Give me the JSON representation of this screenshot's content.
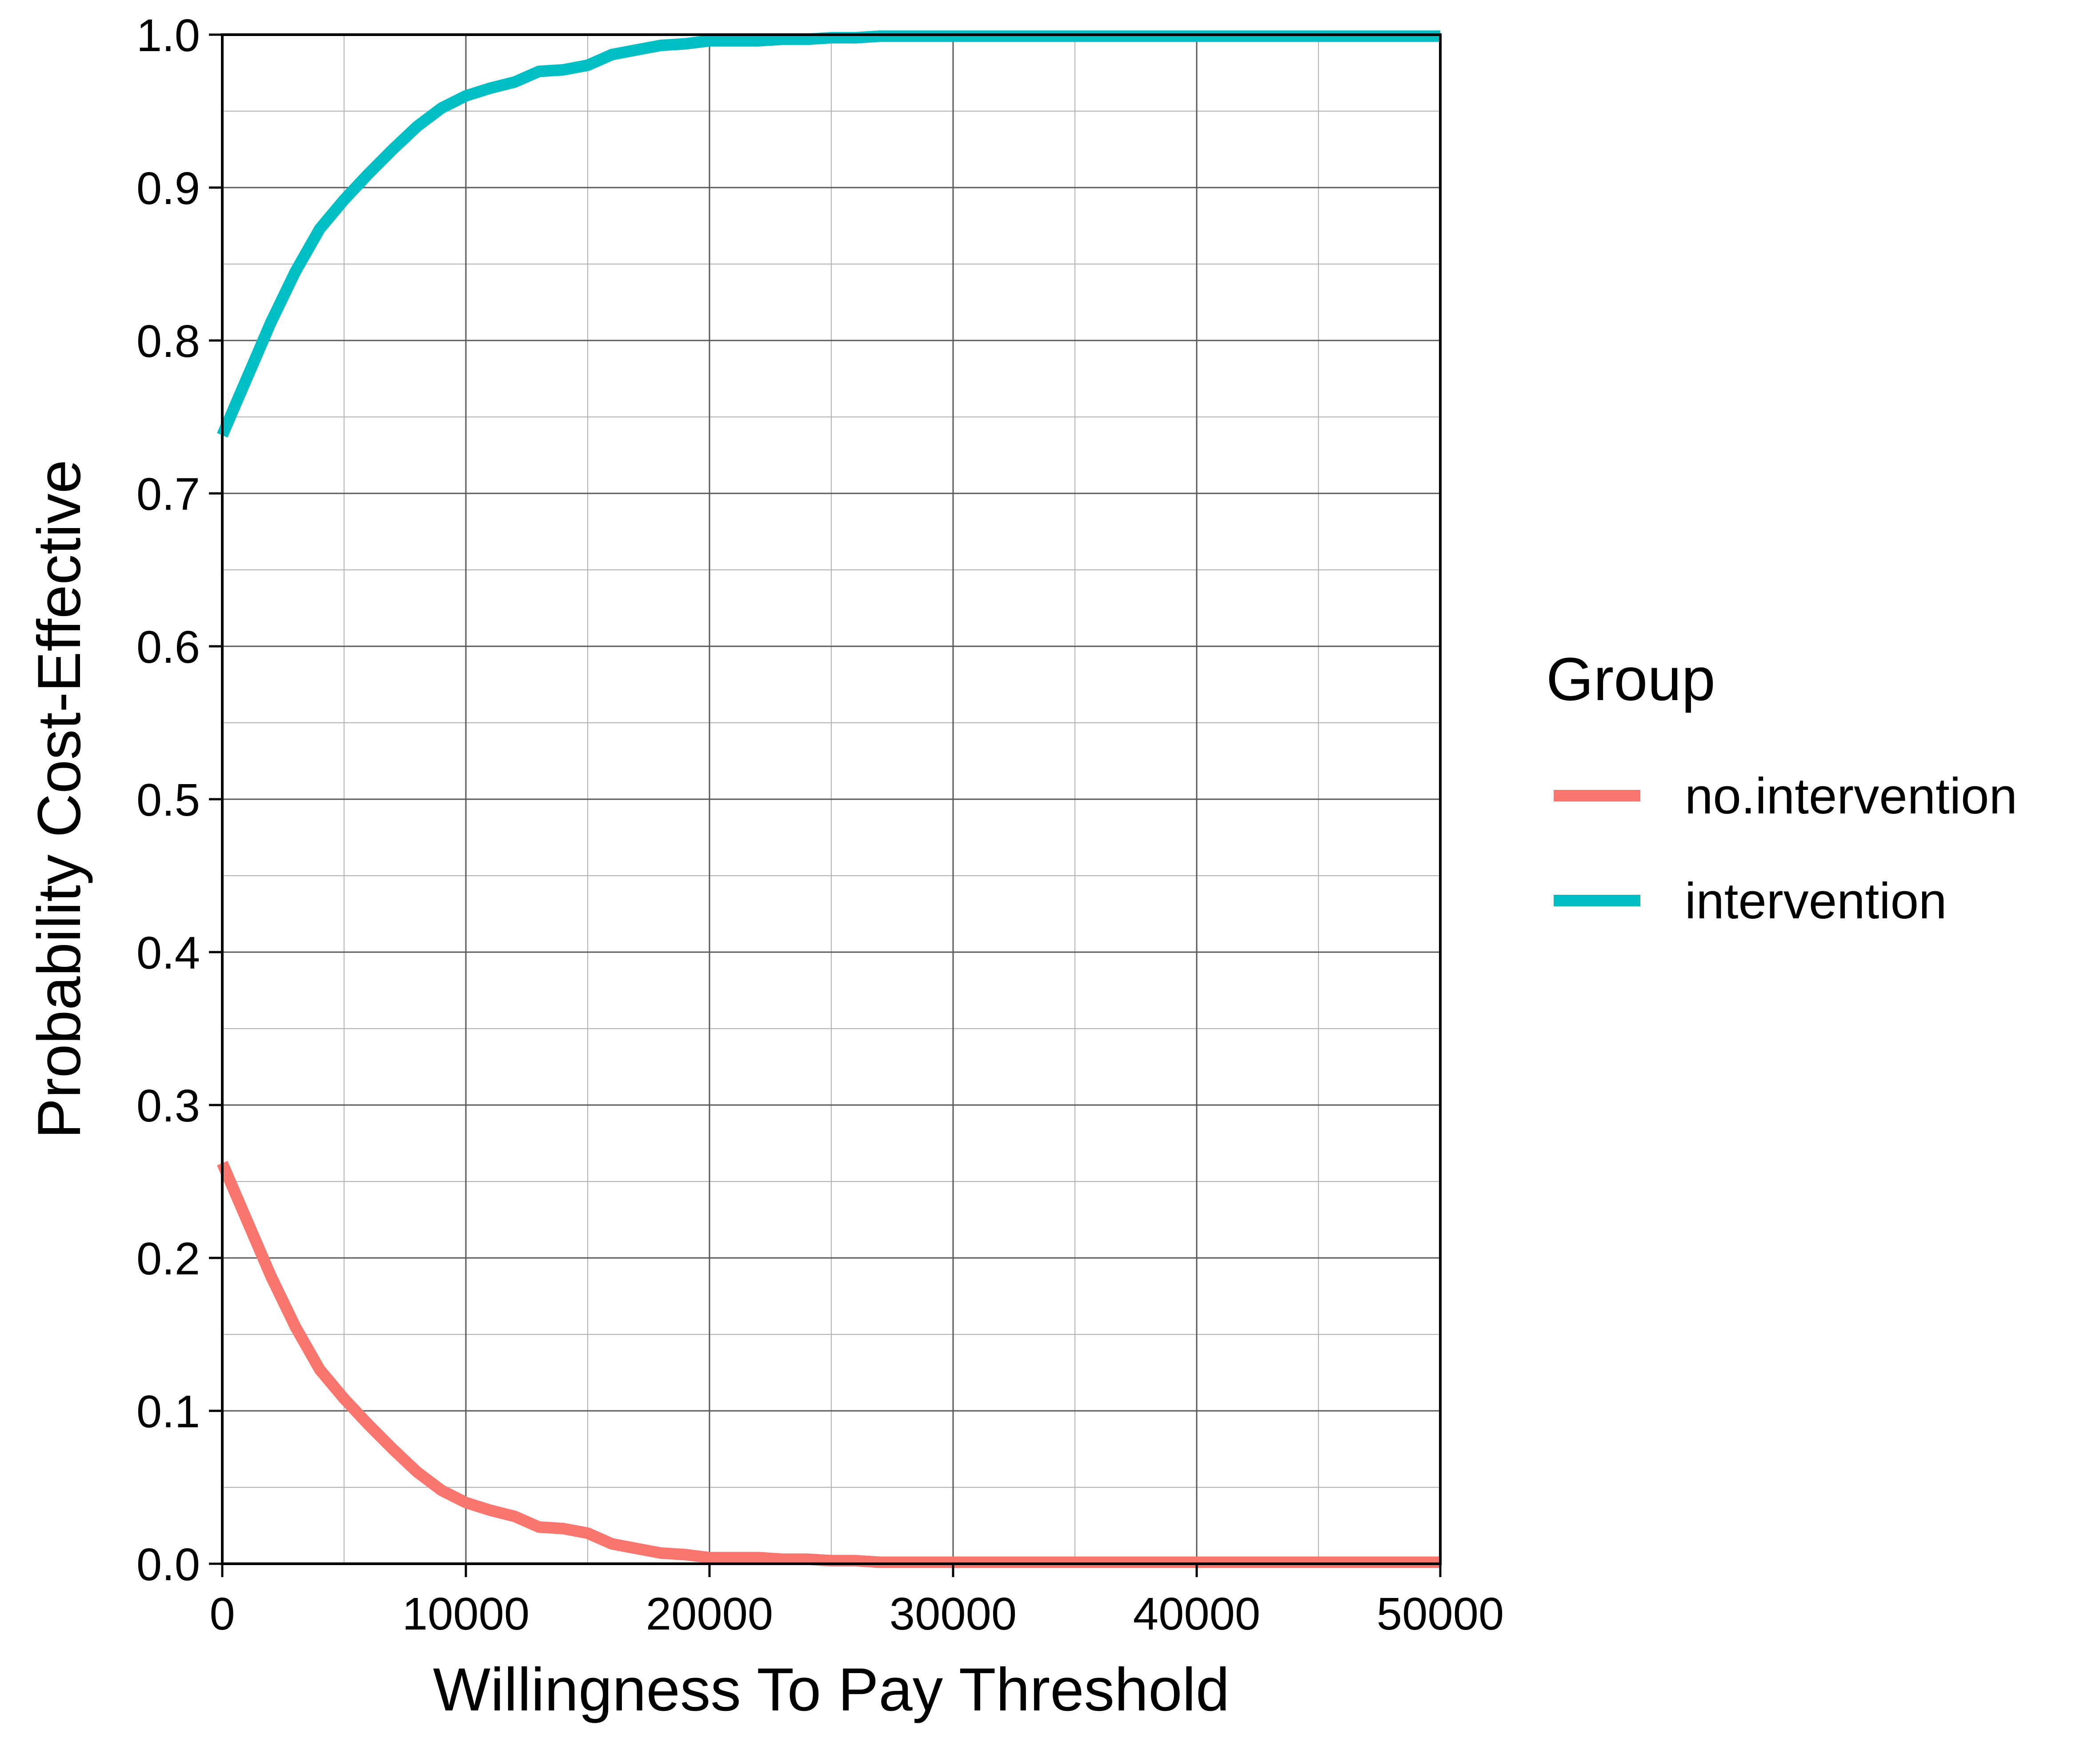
{
  "chart_data": {
    "type": "line",
    "title": "",
    "xlabel": "Willingness To Pay Threshold",
    "ylabel": "Probability Cost-Effective",
    "xlim": [
      0,
      50000
    ],
    "ylim": [
      0,
      1
    ],
    "x_ticks": [
      "0",
      "10000",
      "20000",
      "30000",
      "40000",
      "50000"
    ],
    "y_ticks": [
      "0.0",
      "0.1",
      "0.2",
      "0.3",
      "0.4",
      "0.5",
      "0.6",
      "0.7",
      "0.8",
      "0.9",
      "1.0"
    ],
    "grid": true,
    "legend": {
      "title": "Group",
      "position": "right"
    },
    "x": [
      0,
      1000,
      2000,
      3000,
      4000,
      5000,
      6000,
      7000,
      8000,
      9000,
      10000,
      11000,
      12000,
      13000,
      14000,
      15000,
      16000,
      17000,
      18000,
      19000,
      20000,
      21000,
      22000,
      23000,
      24000,
      25000,
      26000,
      27000,
      28000,
      29000,
      30000,
      31000,
      32000,
      33000,
      34000,
      35000,
      36000,
      37000,
      38000,
      39000,
      40000,
      41000,
      42000,
      43000,
      44000,
      45000,
      46000,
      47000,
      48000,
      49000,
      50000
    ],
    "series": [
      {
        "name": "no.intervention",
        "color": "#F8766D",
        "values": [
          0.262,
          0.225,
          0.188,
          0.155,
          0.127,
          0.108,
          0.091,
          0.075,
          0.06,
          0.048,
          0.04,
          0.035,
          0.031,
          0.024,
          0.023,
          0.02,
          0.013,
          0.01,
          0.007,
          0.006,
          0.004,
          0.004,
          0.004,
          0.003,
          0.003,
          0.002,
          0.002,
          0.001,
          0.001,
          0.001,
          0.001,
          0.001,
          0.001,
          0.001,
          0.001,
          0.001,
          0.001,
          0.001,
          0.001,
          0.001,
          0.001,
          0.001,
          0.001,
          0.001,
          0.001,
          0.001,
          0.001,
          0.001,
          0.001,
          0.001,
          0.001
        ]
      },
      {
        "name": "intervention",
        "color": "#00BFC4",
        "values": [
          0.738,
          0.775,
          0.812,
          0.845,
          0.873,
          0.892,
          0.909,
          0.925,
          0.94,
          0.952,
          0.96,
          0.965,
          0.969,
          0.976,
          0.977,
          0.98,
          0.987,
          0.99,
          0.993,
          0.994,
          0.996,
          0.996,
          0.996,
          0.997,
          0.997,
          0.998,
          0.998,
          0.999,
          0.999,
          0.999,
          0.999,
          0.999,
          0.999,
          0.999,
          0.999,
          0.999,
          0.999,
          0.999,
          0.999,
          0.999,
          0.999,
          0.999,
          0.999,
          0.999,
          0.999,
          0.999,
          0.999,
          0.999,
          0.999,
          0.999,
          0.999
        ]
      }
    ]
  }
}
